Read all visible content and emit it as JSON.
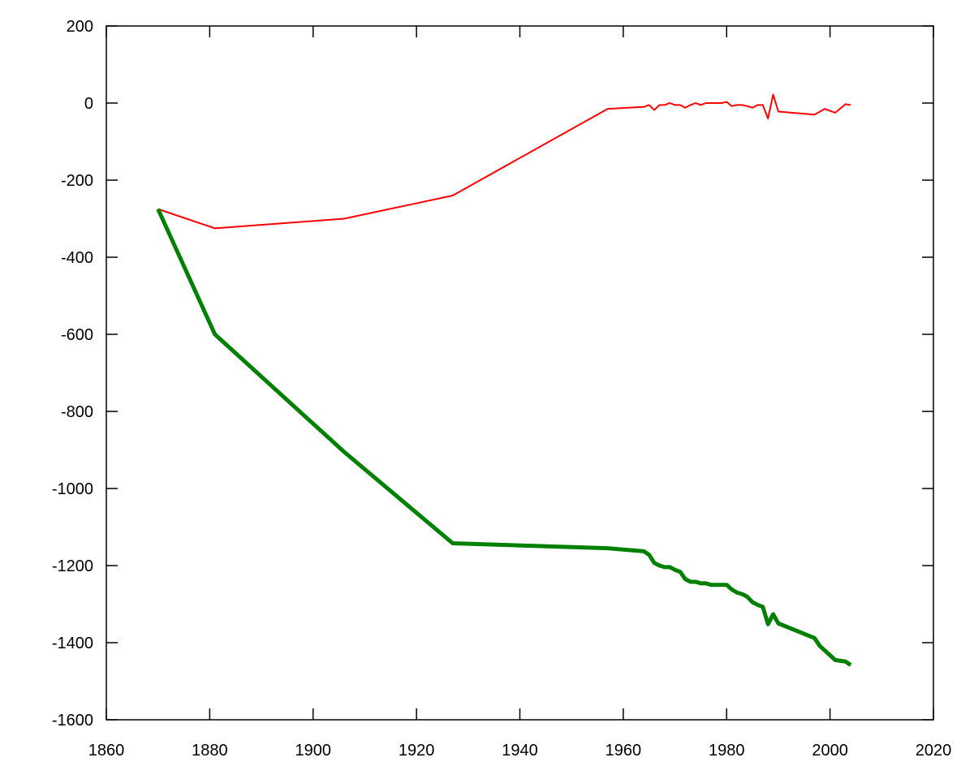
{
  "chart_data": {
    "type": "line",
    "title": "",
    "xlabel": "",
    "ylabel": "",
    "xlim": [
      1860,
      2020
    ],
    "ylim": [
      -1600,
      200
    ],
    "grid": false,
    "legend": "none",
    "x_ticks": [
      1860,
      1880,
      1900,
      1920,
      1940,
      1960,
      1980,
      2000,
      2020
    ],
    "y_ticks": [
      200,
      0,
      -200,
      -400,
      -600,
      -800,
      -1000,
      -1200,
      -1400,
      -1600
    ],
    "x_tick_labels": [
      "1860",
      "1880",
      "1900",
      "1920",
      "1940",
      "1960",
      "1980",
      "2000",
      "2020"
    ],
    "y_tick_labels": [
      "200",
      "0",
      "-200",
      "-400",
      "-600",
      "-800",
      "-1000",
      "-1200",
      "-1400",
      "-1600"
    ],
    "series": [
      {
        "color": "#ff0000",
        "line_width": "thin",
        "points": [
          [
            1870,
            -275
          ],
          [
            1881,
            -325
          ],
          [
            1906,
            -300
          ],
          [
            1927,
            -240
          ],
          [
            1957,
            -15
          ],
          [
            1964,
            -10
          ],
          [
            1965,
            -5
          ],
          [
            1966,
            -18
          ],
          [
            1967,
            -5
          ],
          [
            1968,
            -5
          ],
          [
            1969,
            0
          ],
          [
            1970,
            -5
          ],
          [
            1971,
            -5
          ],
          [
            1972,
            -12
          ],
          [
            1973,
            -5
          ],
          [
            1974,
            0
          ],
          [
            1975,
            -5
          ],
          [
            1976,
            0
          ],
          [
            1977,
            0
          ],
          [
            1978,
            0
          ],
          [
            1979,
            0
          ],
          [
            1980,
            3
          ],
          [
            1981,
            -8
          ],
          [
            1982,
            -5
          ],
          [
            1983,
            -5
          ],
          [
            1984,
            -8
          ],
          [
            1985,
            -12
          ],
          [
            1986,
            -5
          ],
          [
            1987,
            -5
          ],
          [
            1988,
            -40
          ],
          [
            1989,
            22
          ],
          [
            1990,
            -22
          ],
          [
            1997,
            -30
          ],
          [
            1999,
            -15
          ],
          [
            2001,
            -25
          ],
          [
            2003,
            -3
          ],
          [
            2004,
            -5
          ]
        ]
      },
      {
        "color": "#008000",
        "line_width": "thick",
        "points": [
          [
            1870,
            -275
          ],
          [
            1881,
            -600
          ],
          [
            1906,
            -905
          ],
          [
            1927,
            -1142
          ],
          [
            1957,
            -1155
          ],
          [
            1964,
            -1163
          ],
          [
            1965,
            -1172
          ],
          [
            1966,
            -1193
          ],
          [
            1967,
            -1200
          ],
          [
            1968,
            -1204
          ],
          [
            1969,
            -1204
          ],
          [
            1970,
            -1211
          ],
          [
            1971,
            -1216
          ],
          [
            1972,
            -1235
          ],
          [
            1973,
            -1242
          ],
          [
            1974,
            -1242
          ],
          [
            1975,
            -1246
          ],
          [
            1976,
            -1246
          ],
          [
            1977,
            -1250
          ],
          [
            1978,
            -1250
          ],
          [
            1979,
            -1250
          ],
          [
            1980,
            -1250
          ],
          [
            1981,
            -1262
          ],
          [
            1982,
            -1270
          ],
          [
            1983,
            -1274
          ],
          [
            1984,
            -1281
          ],
          [
            1985,
            -1295
          ],
          [
            1986,
            -1302
          ],
          [
            1987,
            -1307
          ],
          [
            1988,
            -1352
          ],
          [
            1989,
            -1326
          ],
          [
            1990,
            -1350
          ],
          [
            1997,
            -1388
          ],
          [
            1998,
            -1408
          ],
          [
            2001,
            -1445
          ],
          [
            2003,
            -1449
          ],
          [
            2004,
            -1458
          ]
        ]
      }
    ]
  }
}
